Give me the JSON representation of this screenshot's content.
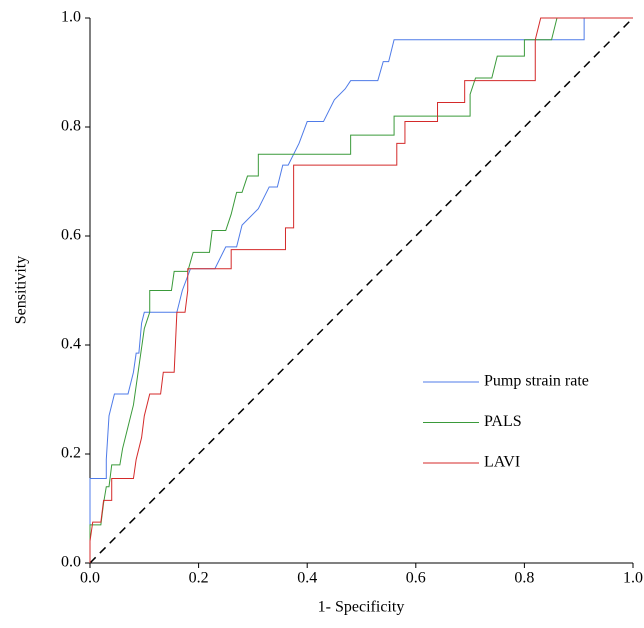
{
  "chart_data": {
    "type": "line",
    "x_label": "1- Specificity",
    "y_label": "Sensitivity",
    "xlim": [
      0,
      1
    ],
    "ylim": [
      0,
      1
    ],
    "xticks": [
      {
        "value": 0,
        "label": "0.0"
      },
      0.2,
      0.4,
      0.6,
      0.8,
      {
        "value": 1,
        "label": "1.0"
      }
    ],
    "yticks": [
      {
        "value": 0,
        "label": "0.0"
      },
      0.2,
      0.4,
      0.6,
      0.8,
      {
        "value": 1,
        "label": "1.0"
      }
    ],
    "legend": "lower right",
    "series": [
      {
        "name": "Pump strain rate",
        "color": "#4f7be8",
        "x": [
          0,
          0,
          0.03,
          0.03,
          0.035,
          0.045,
          0.07,
          0.08,
          0.085,
          0.09,
          0.095,
          0.1,
          0.16,
          0.17,
          0.185,
          0.23,
          0.25,
          0.27,
          0.28,
          0.31,
          0.33,
          0.345,
          0.355,
          0.365,
          0.385,
          0.4,
          0.43,
          0.45,
          0.47,
          0.48,
          0.53,
          0.54,
          0.55,
          0.56,
          0.91,
          0.91,
          1
        ],
        "values": [
          0,
          0.155,
          0.155,
          0.19,
          0.27,
          0.31,
          0.31,
          0.35,
          0.385,
          0.385,
          0.44,
          0.46,
          0.46,
          0.5,
          0.54,
          0.54,
          0.58,
          0.58,
          0.62,
          0.65,
          0.69,
          0.69,
          0.73,
          0.73,
          0.77,
          0.81,
          0.81,
          0.85,
          0.87,
          0.885,
          0.885,
          0.92,
          0.92,
          0.96,
          0.96,
          1,
          1
        ]
      },
      {
        "name": "PALS",
        "color": "#3a9a3a",
        "x": [
          0,
          0,
          0.02,
          0.025,
          0.03,
          0.035,
          0.04,
          0.055,
          0.06,
          0.07,
          0.08,
          0.09,
          0.1,
          0.11,
          0.11,
          0.15,
          0.155,
          0.18,
          0.19,
          0.22,
          0.225,
          0.25,
          0.26,
          0.27,
          0.28,
          0.29,
          0.31,
          0.31,
          0.48,
          0.48,
          0.56,
          0.56,
          0.7,
          0.7,
          0.71,
          0.74,
          0.75,
          0.8,
          0.8,
          0.85,
          0.86,
          1
        ],
        "values": [
          0,
          0.07,
          0.07,
          0.11,
          0.14,
          0.14,
          0.18,
          0.18,
          0.21,
          0.25,
          0.29,
          0.36,
          0.43,
          0.46,
          0.5,
          0.5,
          0.535,
          0.535,
          0.57,
          0.57,
          0.61,
          0.61,
          0.64,
          0.68,
          0.68,
          0.71,
          0.71,
          0.75,
          0.75,
          0.785,
          0.785,
          0.82,
          0.82,
          0.86,
          0.89,
          0.89,
          0.93,
          0.93,
          0.96,
          0.96,
          1,
          1
        ]
      },
      {
        "name": "LAVI",
        "color": "#d42a2a",
        "x": [
          0,
          0,
          0.005,
          0.02,
          0.025,
          0.04,
          0.04,
          0.08,
          0.085,
          0.095,
          0.1,
          0.11,
          0.13,
          0.135,
          0.155,
          0.16,
          0.175,
          0.18,
          0.18,
          0.26,
          0.26,
          0.36,
          0.36,
          0.375,
          0.375,
          0.565,
          0.565,
          0.58,
          0.58,
          0.64,
          0.64,
          0.69,
          0.69,
          0.82,
          0.82,
          0.83,
          1
        ],
        "values": [
          0,
          0.04,
          0.075,
          0.075,
          0.115,
          0.115,
          0.155,
          0.155,
          0.19,
          0.23,
          0.27,
          0.31,
          0.31,
          0.35,
          0.35,
          0.46,
          0.46,
          0.5,
          0.54,
          0.54,
          0.575,
          0.575,
          0.615,
          0.615,
          0.73,
          0.73,
          0.77,
          0.77,
          0.81,
          0.81,
          0.845,
          0.845,
          0.885,
          0.885,
          0.96,
          1,
          1
        ]
      }
    ]
  }
}
